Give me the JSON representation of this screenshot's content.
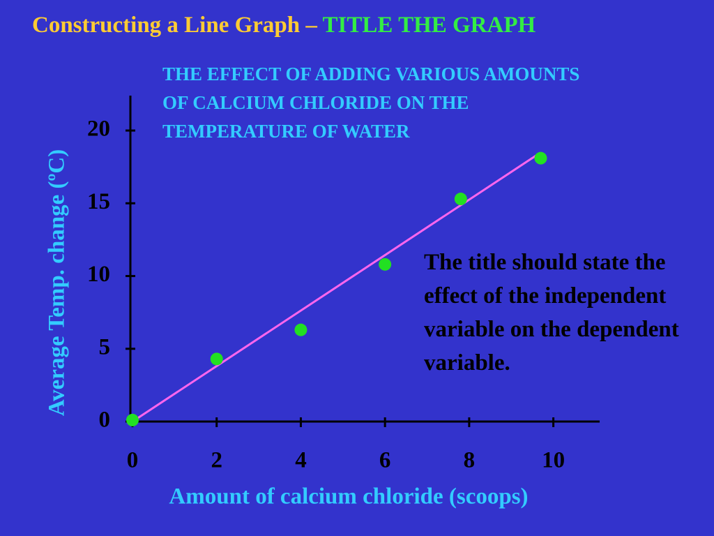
{
  "slide_title": {
    "main": "Constructing a Line Graph –",
    "highlight": "TITLE THE GRAPH"
  },
  "note": "The title should state the effect of the independent variable on the dependent variable.",
  "chart_data": {
    "type": "scatter",
    "title": "THE EFFECT OF ADDING VARIOUS AMOUNTS OF CALCIUM CHLORIDE ON THE TEMPERATURE OF WATER",
    "x_label": "Amount of calcium chloride (scoops)",
    "y_label": "Average Temp. change (ºC)",
    "x": [
      0,
      2,
      4,
      6,
      7.8,
      9.7
    ],
    "series": [
      {
        "color": "#22e022",
        "values": [
          0.1,
          4.3,
          6.3,
          10.8,
          15.3,
          18.1
        ]
      }
    ],
    "trendline": {
      "color": "#ff66ee",
      "x": [
        0,
        9.6
      ],
      "values": [
        0,
        18.3
      ]
    },
    "xlim": [
      0,
      11.1
    ],
    "ylim": [
      0,
      22.4
    ],
    "xticks": [
      0,
      2,
      4,
      6,
      8,
      10
    ],
    "yticks": [
      0,
      5,
      10,
      15,
      20
    ]
  }
}
